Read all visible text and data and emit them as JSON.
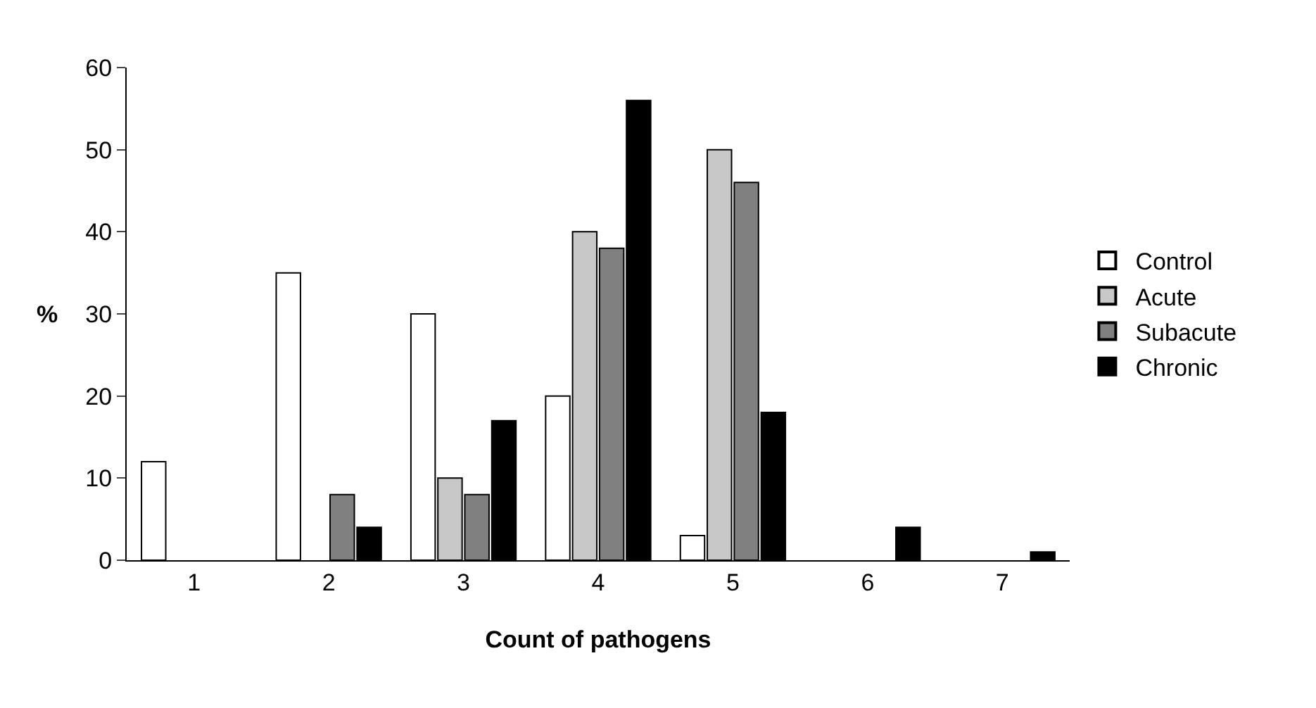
{
  "chart_data": {
    "type": "bar",
    "xlabel": "Count of pathogens",
    "ylabel": "%",
    "categories": [
      "1",
      "2",
      "3",
      "4",
      "5",
      "6",
      "7"
    ],
    "series": [
      {
        "name": "Control",
        "color": "#ffffff",
        "values": [
          12,
          35,
          30,
          20,
          3,
          0,
          0
        ]
      },
      {
        "name": "Acute",
        "color": "#c8c8c8",
        "values": [
          0,
          0,
          10,
          40,
          50,
          0,
          0
        ]
      },
      {
        "name": "Subacute",
        "color": "#808080",
        "values": [
          0,
          8,
          8,
          38,
          46,
          0,
          0
        ]
      },
      {
        "name": "Chronic",
        "color": "#000000",
        "values": [
          0,
          4,
          17,
          56,
          18,
          4,
          1
        ]
      }
    ],
    "ylim": [
      0,
      60
    ],
    "yticks": [
      0,
      10,
      20,
      30,
      40,
      50,
      60
    ],
    "legend": "right"
  }
}
